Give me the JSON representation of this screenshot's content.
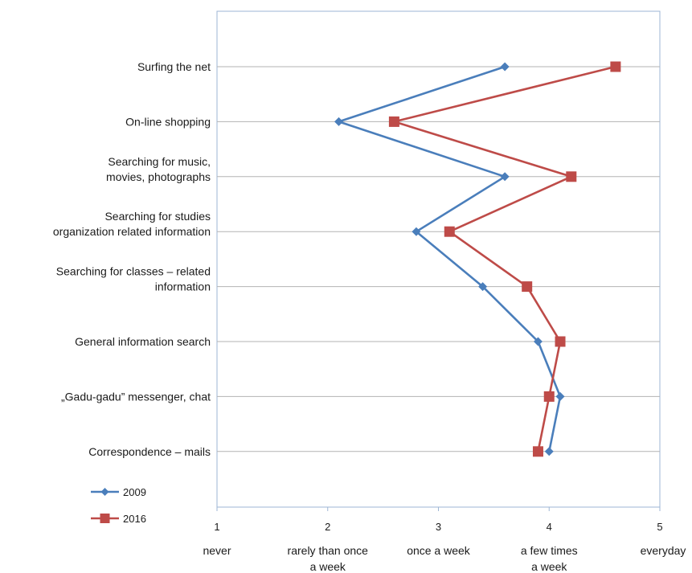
{
  "chart_data": {
    "type": "line",
    "orientation": "horizontal-values",
    "title": "",
    "categories": [
      "Surfing the net",
      "On-line shopping",
      "Searching for music, movies, photographs",
      "Searching for studies organization related information",
      "Searching for classes – related information",
      "General information search",
      "„Gadu-gadu” messenger, chat",
      "Correspondence – mails"
    ],
    "category_lines": [
      [
        "Surfing the net"
      ],
      [
        "On-line shopping"
      ],
      [
        "Searching for music,",
        "movies, photographs"
      ],
      [
        "Searching for studies",
        "organization related information"
      ],
      [
        "Searching for classes – related",
        "information"
      ],
      [
        "General information search"
      ],
      [
        "„Gadu-gadu” messenger, chat"
      ],
      [
        "Correspondence – mails"
      ]
    ],
    "series": [
      {
        "name": "2009",
        "color": "#4a7ebb",
        "marker": "diamond",
        "values": [
          3.6,
          2.1,
          3.6,
          2.8,
          3.4,
          3.9,
          4.1,
          4.0
        ]
      },
      {
        "name": "2016",
        "color": "#be4b48",
        "marker": "square",
        "values": [
          4.6,
          2.6,
          4.2,
          3.1,
          3.8,
          4.1,
          4.0,
          3.9
        ]
      }
    ],
    "xlim": [
      1,
      5
    ],
    "xticks": [
      1,
      2,
      3,
      4,
      5
    ],
    "xtick_labels": [
      "1",
      "2",
      "3",
      "4",
      "5"
    ],
    "xcategory_labels": [
      [
        "never"
      ],
      [
        "rarely than once",
        "a week"
      ],
      [
        "once a week"
      ],
      [
        "a few times",
        "a week"
      ],
      [
        "everyday"
      ]
    ],
    "grid": "horizontal",
    "legend_position": "bottom-left"
  }
}
